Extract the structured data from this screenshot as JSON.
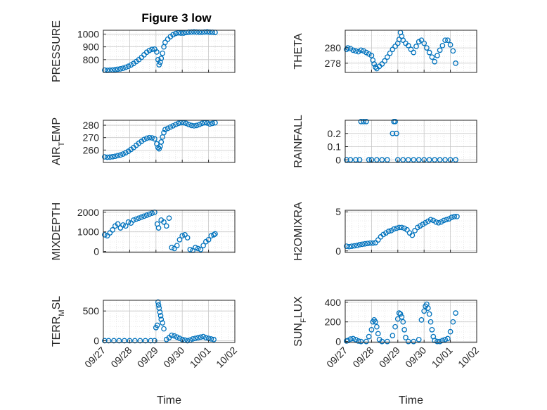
{
  "figure": {
    "title": "Figure 3 low",
    "x_label": "Time",
    "x_tick_labels": [
      "09/27",
      "09/28",
      "09/29",
      "09/30",
      "10/01",
      "10/02"
    ]
  },
  "style": {
    "marker_color": "#0072BD",
    "axis_color": "#262626",
    "grid_color": "#d9d9d9"
  },
  "chart_data": [
    {
      "type": "scatter",
      "ylabel": "PRESSURE",
      "xlim": [
        0,
        5
      ],
      "ylim": [
        700,
        1030
      ],
      "yticks": [
        800,
        900,
        1000
      ],
      "x": [
        0.05,
        0.15,
        0.25,
        0.35,
        0.45,
        0.55,
        0.65,
        0.75,
        0.85,
        0.95,
        1.05,
        1.15,
        1.25,
        1.35,
        1.45,
        1.55,
        1.65,
        1.75,
        1.85,
        1.95,
        2.03,
        2.08,
        2.12,
        2.16,
        2.2,
        2.25,
        2.3,
        2.35,
        2.45,
        2.55,
        2.65,
        2.75,
        2.85,
        2.95,
        3.05,
        3.15,
        3.25,
        3.35,
        3.45,
        3.55,
        3.65,
        3.75,
        3.85,
        3.95,
        4.05,
        4.15,
        4.25
      ],
      "y": [
        718,
        716,
        717,
        719,
        722,
        725,
        728,
        733,
        740,
        748,
        758,
        770,
        785,
        800,
        818,
        838,
        858,
        872,
        880,
        882,
        860,
        800,
        760,
        780,
        810,
        850,
        900,
        935,
        960,
        980,
        995,
        1005,
        1010,
        1008,
        1008,
        1012,
        1015,
        1016,
        1017,
        1016,
        1015,
        1014,
        1016,
        1017,
        1015,
        1014,
        1013
      ]
    },
    {
      "type": "scatter",
      "ylabel": "THETA",
      "xlim": [
        0,
        5
      ],
      "ylim": [
        276.8,
        282.3
      ],
      "yticks": [
        278,
        280
      ],
      "x": [
        0.05,
        0.1,
        0.2,
        0.3,
        0.4,
        0.5,
        0.6,
        0.7,
        0.8,
        0.9,
        1.0,
        1.05,
        1.1,
        1.15,
        1.2,
        1.3,
        1.4,
        1.5,
        1.6,
        1.7,
        1.8,
        1.9,
        2.0,
        2.05,
        2.1,
        2.15,
        2.2,
        2.3,
        2.4,
        2.5,
        2.6,
        2.7,
        2.8,
        2.9,
        3.0,
        3.1,
        3.2,
        3.3,
        3.4,
        3.5,
        3.6,
        3.7,
        3.8,
        3.9,
        4.0,
        4.1,
        4.2
      ],
      "y": [
        279.8,
        280.0,
        279.9,
        279.7,
        279.6,
        279.5,
        279.7,
        279.6,
        279.4,
        279.2,
        279.0,
        278.4,
        277.9,
        277.5,
        277.3,
        277.6,
        277.9,
        278.3,
        278.8,
        279.3,
        279.8,
        280.2,
        280.6,
        281.1,
        282.0,
        281.5,
        281.0,
        280.6,
        280.3,
        279.8,
        279.4,
        280.2,
        280.8,
        281.0,
        280.6,
        280.0,
        279.4,
        278.8,
        278.2,
        279.0,
        279.7,
        280.3,
        281.0,
        281.0,
        280.4,
        279.6,
        278.0
      ]
    },
    {
      "type": "scatter",
      "ylabel": "AIR_TEMP",
      "xlim": [
        0,
        5
      ],
      "ylim": [
        250,
        284
      ],
      "yticks": [
        260,
        270,
        280
      ],
      "x": [
        0.05,
        0.15,
        0.25,
        0.35,
        0.45,
        0.55,
        0.65,
        0.75,
        0.85,
        0.95,
        1.05,
        1.15,
        1.25,
        1.35,
        1.45,
        1.55,
        1.65,
        1.75,
        1.85,
        1.95,
        2.03,
        2.08,
        2.12,
        2.16,
        2.2,
        2.25,
        2.3,
        2.35,
        2.45,
        2.55,
        2.65,
        2.75,
        2.85,
        2.95,
        3.05,
        3.15,
        3.25,
        3.35,
        3.45,
        3.55,
        3.65,
        3.75,
        3.85,
        3.95,
        4.05,
        4.15,
        4.25
      ],
      "y": [
        254.5,
        254.2,
        254.3,
        254.6,
        255.0,
        255.5,
        256.0,
        256.8,
        257.8,
        259.0,
        260.5,
        262.0,
        263.8,
        265.5,
        267.0,
        268.5,
        269.5,
        270.0,
        269.8,
        269.0,
        265.0,
        262.0,
        261.0,
        263.0,
        266.5,
        270.5,
        274.0,
        276.5,
        277.5,
        278.5,
        279.5,
        280.5,
        281.5,
        282.0,
        282.0,
        281.5,
        280.5,
        279.8,
        279.5,
        279.8,
        280.5,
        281.5,
        282.0,
        281.8,
        281.0,
        281.5,
        282.0
      ]
    },
    {
      "type": "scatter",
      "ylabel": "RAINFALL",
      "xlim": [
        0,
        5
      ],
      "ylim": [
        -0.02,
        0.3
      ],
      "yticks": [
        0,
        0.1,
        0.2
      ],
      "x": [
        0.05,
        0.2,
        0.4,
        0.55,
        0.6,
        0.7,
        0.8,
        0.9,
        1.0,
        1.2,
        1.4,
        1.6,
        1.8,
        1.85,
        1.9,
        1.95,
        2.0,
        2.2,
        2.4,
        2.6,
        2.8,
        3.0,
        3.2,
        3.4,
        3.6,
        3.8,
        4.0,
        4.2
      ],
      "y": [
        0,
        0,
        0,
        0,
        0.29,
        0.29,
        0.29,
        0,
        0,
        0,
        0,
        0,
        0.2,
        0.29,
        0.29,
        0.2,
        0,
        0,
        0,
        0,
        0,
        0,
        0,
        0,
        0,
        0,
        0,
        0
      ]
    },
    {
      "type": "scatter",
      "ylabel": "MIXDEPTH",
      "xlim": [
        0,
        5
      ],
      "ylim": [
        -50,
        2100
      ],
      "yticks": [
        0,
        1000,
        2000
      ],
      "x": [
        0.05,
        0.15,
        0.25,
        0.35,
        0.45,
        0.55,
        0.65,
        0.75,
        0.85,
        0.95,
        1.05,
        1.15,
        1.25,
        1.35,
        1.45,
        1.55,
        1.65,
        1.75,
        1.85,
        1.95,
        2.05,
        2.1,
        2.2,
        2.3,
        2.4,
        2.5,
        2.6,
        2.7,
        2.8,
        2.9,
        3.0,
        3.1,
        3.2,
        3.3,
        3.4,
        3.5,
        3.6,
        3.7,
        3.8,
        3.9,
        4.0,
        4.1,
        4.2,
        4.25
      ],
      "y": [
        850,
        800,
        950,
        1100,
        1300,
        1400,
        1200,
        1350,
        1300,
        1500,
        1450,
        1600,
        1650,
        1700,
        1750,
        1800,
        1850,
        1900,
        1950,
        2000,
        1400,
        1200,
        1600,
        1500,
        1300,
        1700,
        200,
        150,
        300,
        600,
        800,
        850,
        700,
        100,
        50,
        200,
        150,
        100,
        300,
        500,
        600,
        800,
        850,
        900
      ]
    },
    {
      "type": "scatter",
      "ylabel": "H2OMIXRA",
      "xlim": [
        0,
        5
      ],
      "ylim": [
        -0.2,
        5.2
      ],
      "yticks": [
        0,
        5
      ],
      "x": [
        0.05,
        0.15,
        0.25,
        0.35,
        0.45,
        0.55,
        0.65,
        0.75,
        0.85,
        0.95,
        1.05,
        1.15,
        1.25,
        1.35,
        1.45,
        1.55,
        1.65,
        1.75,
        1.85,
        1.95,
        2.05,
        2.15,
        2.25,
        2.35,
        2.45,
        2.55,
        2.65,
        2.75,
        2.85,
        2.95,
        3.05,
        3.15,
        3.25,
        3.35,
        3.45,
        3.55,
        3.65,
        3.75,
        3.85,
        3.95,
        4.05,
        4.15,
        4.25
      ],
      "y": [
        0.6,
        0.55,
        0.6,
        0.65,
        0.7,
        0.8,
        0.85,
        0.9,
        0.95,
        1.0,
        1.0,
        1.05,
        1.4,
        1.8,
        2.1,
        2.3,
        2.5,
        2.6,
        2.8,
        2.9,
        3.0,
        3.0,
        2.9,
        2.7,
        2.3,
        2.0,
        2.6,
        3.0,
        3.2,
        3.4,
        3.6,
        3.8,
        4.0,
        3.9,
        3.7,
        3.6,
        3.7,
        3.9,
        4.0,
        4.1,
        4.3,
        4.4,
        4.4
      ]
    },
    {
      "type": "scatter",
      "ylabel": "TERR_MSL",
      "xlim": [
        0,
        5
      ],
      "ylim": [
        -30,
        680
      ],
      "yticks": [
        0,
        500
      ],
      "x": [
        0.05,
        0.2,
        0.4,
        0.6,
        0.8,
        1.0,
        1.2,
        1.4,
        1.6,
        1.8,
        1.95,
        2.0,
        2.05,
        2.08,
        2.1,
        2.12,
        2.15,
        2.18,
        2.2,
        2.25,
        2.3,
        2.4,
        2.5,
        2.6,
        2.7,
        2.8,
        2.9,
        3.0,
        3.1,
        3.2,
        3.3,
        3.4,
        3.5,
        3.6,
        3.7,
        3.8,
        3.9,
        4.0,
        4.1,
        4.2
      ],
      "y": [
        0,
        0,
        0,
        0,
        0,
        0,
        0,
        0,
        0,
        0,
        0,
        220,
        260,
        650,
        600,
        550,
        480,
        420,
        360,
        300,
        200,
        20,
        50,
        90,
        80,
        60,
        40,
        20,
        10,
        0,
        10,
        30,
        40,
        50,
        60,
        70,
        50,
        40,
        30,
        20
      ]
    },
    {
      "type": "scatter",
      "ylabel": "SUN_FLUX",
      "xlim": [
        0,
        5
      ],
      "ylim": [
        -10,
        420
      ],
      "yticks": [
        0,
        200,
        400
      ],
      "x": [
        0.05,
        0.1,
        0.2,
        0.3,
        0.4,
        0.5,
        0.6,
        0.8,
        0.9,
        1.0,
        1.05,
        1.1,
        1.15,
        1.2,
        1.25,
        1.3,
        1.4,
        1.6,
        1.8,
        1.9,
        2.0,
        2.05,
        2.1,
        2.15,
        2.2,
        2.25,
        2.3,
        2.4,
        2.6,
        2.8,
        2.9,
        3.0,
        3.05,
        3.1,
        3.15,
        3.2,
        3.25,
        3.3,
        3.35,
        3.4,
        3.5,
        3.6,
        3.7,
        3.8,
        3.9,
        4.0,
        4.1,
        4.2
      ],
      "y": [
        5,
        10,
        25,
        30,
        20,
        5,
        0,
        0,
        50,
        120,
        200,
        220,
        200,
        150,
        80,
        20,
        0,
        0,
        60,
        150,
        230,
        290,
        280,
        250,
        200,
        120,
        40,
        0,
        0,
        20,
        220,
        310,
        360,
        380,
        340,
        280,
        200,
        120,
        50,
        10,
        0,
        0,
        10,
        20,
        30,
        100,
        200,
        290
      ]
    }
  ]
}
